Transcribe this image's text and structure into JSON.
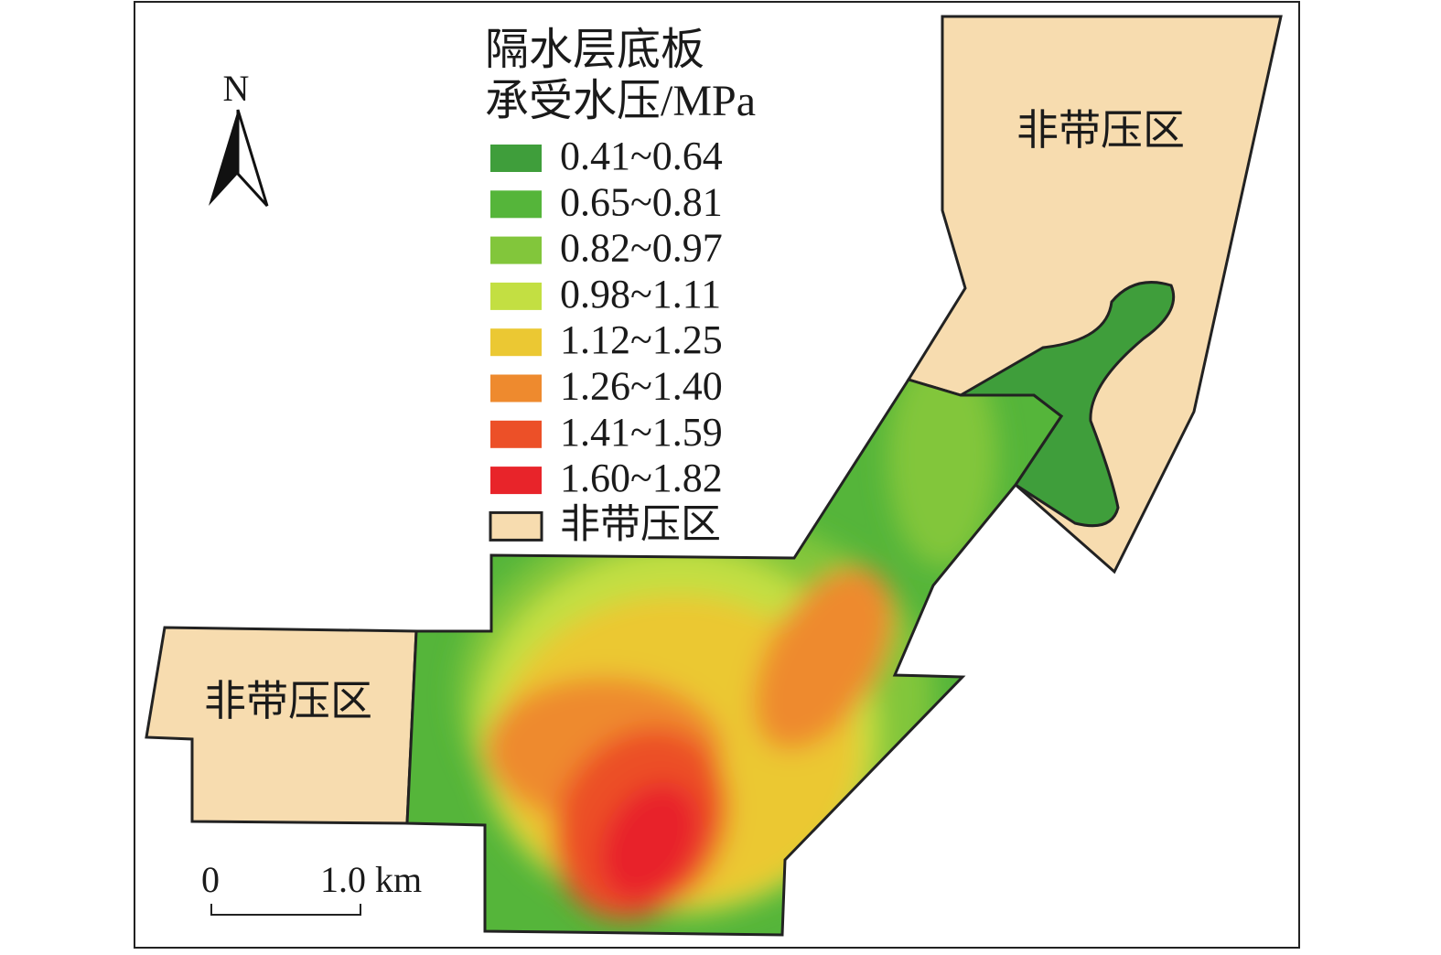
{
  "legend": {
    "title": [
      "隔水层底板",
      "承受水压/MPa"
    ],
    "items": [
      {
        "label": "0.41~0.64",
        "color": "#3f9e3b"
      },
      {
        "label": "0.65~0.81",
        "color": "#55b53a"
      },
      {
        "label": "0.82~0.97",
        "color": "#82c63b"
      },
      {
        "label": "0.98~1.11",
        "color": "#c3df42"
      },
      {
        "label": "1.12~1.25",
        "color": "#ebc833"
      },
      {
        "label": "1.26~1.40",
        "color": "#ee8a2e"
      },
      {
        "label": "1.41~1.59",
        "color": "#ec5028"
      },
      {
        "label": "1.60~1.82",
        "color": "#e8242a"
      },
      {
        "label": "非带压区",
        "color": "#f7dcaf"
      }
    ]
  },
  "regions": [
    {
      "label": "非带压区"
    },
    {
      "label": "非带压区"
    }
  ],
  "north": "N",
  "scale_bar": {
    "labels": [
      "0",
      "1.0 km"
    ]
  }
}
